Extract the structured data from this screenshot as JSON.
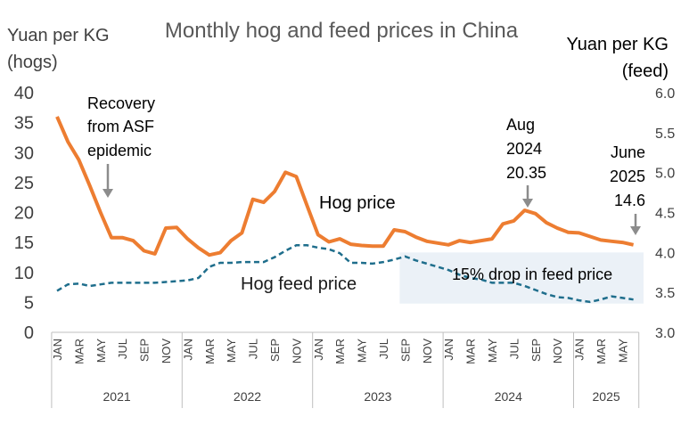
{
  "chart_data": {
    "type": "line",
    "title": "Monthly hog and feed prices in China",
    "ylabel_left_line1": "Yuan per KG",
    "ylabel_left_line2": "(hogs)",
    "ylabel_right_line1": "Yuan per KG",
    "ylabel_right_line2": "(feed)",
    "ylim_left": [
      0,
      40
    ],
    "ylim_right": [
      3.0,
      6.0
    ],
    "left_ticks": [
      "0",
      "5",
      "10",
      "15",
      "20",
      "25",
      "30",
      "35",
      "40"
    ],
    "right_ticks": [
      "3.0",
      "3.5",
      "4.0",
      "4.5",
      "5.0",
      "5.5",
      "6.0"
    ],
    "month_labels": [
      "JAN",
      "MAR",
      "MAY",
      "JUL",
      "SEP",
      "NOV",
      "JAN",
      "MAR",
      "MAY",
      "JUL",
      "SEP",
      "NOV",
      "JAN",
      "MAR",
      "MAY",
      "JUL",
      "SEP",
      "NOV",
      "JAN",
      "MAR",
      "MAY",
      "JUL",
      "SEP",
      "NOV",
      "JAN",
      "MAR",
      "MAY"
    ],
    "year_labels": [
      "2021",
      "2022",
      "2023",
      "2024",
      "2025"
    ],
    "months_per_year": [
      12,
      12,
      12,
      12,
      6
    ],
    "series": [
      {
        "name": "Hog price",
        "axis": "left",
        "color": "#ED7D31",
        "values": [
          36.0,
          31.8,
          28.8,
          24.5,
          20.0,
          15.8,
          15.8,
          15.3,
          13.6,
          13.1,
          17.4,
          17.5,
          15.6,
          14.1,
          12.9,
          13.3,
          15.3,
          16.6,
          22.2,
          21.7,
          23.5,
          26.7,
          26.0,
          21.1,
          16.3,
          15.1,
          15.6,
          14.7,
          14.5,
          14.4,
          14.4,
          17.1,
          16.8,
          15.9,
          15.2,
          14.9,
          14.6,
          15.3,
          15.0,
          15.3,
          15.6,
          18.1,
          18.6,
          20.35,
          19.8,
          18.3,
          17.4,
          16.7,
          16.6,
          16.0,
          15.4,
          15.2,
          15.0,
          14.6
        ]
      },
      {
        "name": "Hog feed price",
        "axis": "right",
        "color": "#1F6E8C",
        "values": [
          3.52,
          3.6,
          3.61,
          3.58,
          3.6,
          3.62,
          3.62,
          3.62,
          3.62,
          3.62,
          3.63,
          3.64,
          3.65,
          3.68,
          3.82,
          3.87,
          3.87,
          3.88,
          3.88,
          3.88,
          3.94,
          4.02,
          4.09,
          4.09,
          4.06,
          4.04,
          3.99,
          3.87,
          3.87,
          3.86,
          3.88,
          3.91,
          3.95,
          3.9,
          3.86,
          3.82,
          3.78,
          3.72,
          3.68,
          3.66,
          3.62,
          3.62,
          3.62,
          3.58,
          3.53,
          3.48,
          3.44,
          3.43,
          3.4,
          3.38,
          3.41,
          3.45,
          3.43,
          3.41
        ]
      }
    ],
    "annotations": {
      "recovery": [
        "Recovery",
        "from ASF",
        "epidemic"
      ],
      "aug2024": [
        "Aug",
        "2024",
        "20.35"
      ],
      "june2025": [
        "June",
        "2025",
        "14.6"
      ],
      "hog_label": "Hog price",
      "feed_label": "Hog feed price",
      "drop_label": "15% drop in feed price"
    },
    "legend": "none",
    "grid": false
  }
}
